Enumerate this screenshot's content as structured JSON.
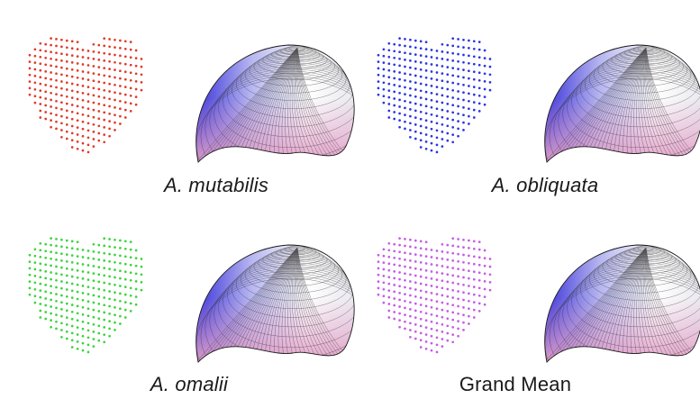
{
  "panels": [
    {
      "id": "mutabilis",
      "caption": "A. mutabilis",
      "italic": true,
      "dot_color": "#e03a2a"
    },
    {
      "id": "obliquata",
      "caption": "A. obliquata",
      "italic": true,
      "dot_color": "#2b35e0"
    },
    {
      "id": "omalii",
      "caption": "A. omalii",
      "italic": true,
      "dot_color": "#3bd43b"
    },
    {
      "id": "grand-mean",
      "caption": "Grand Mean",
      "italic": false,
      "dot_color": "#c45ce6"
    }
  ],
  "surface_colors": {
    "blue": "#3b34d9",
    "pink": "#e3a0c8",
    "white": "#ffffff",
    "mesh": "#2a2a2a"
  }
}
